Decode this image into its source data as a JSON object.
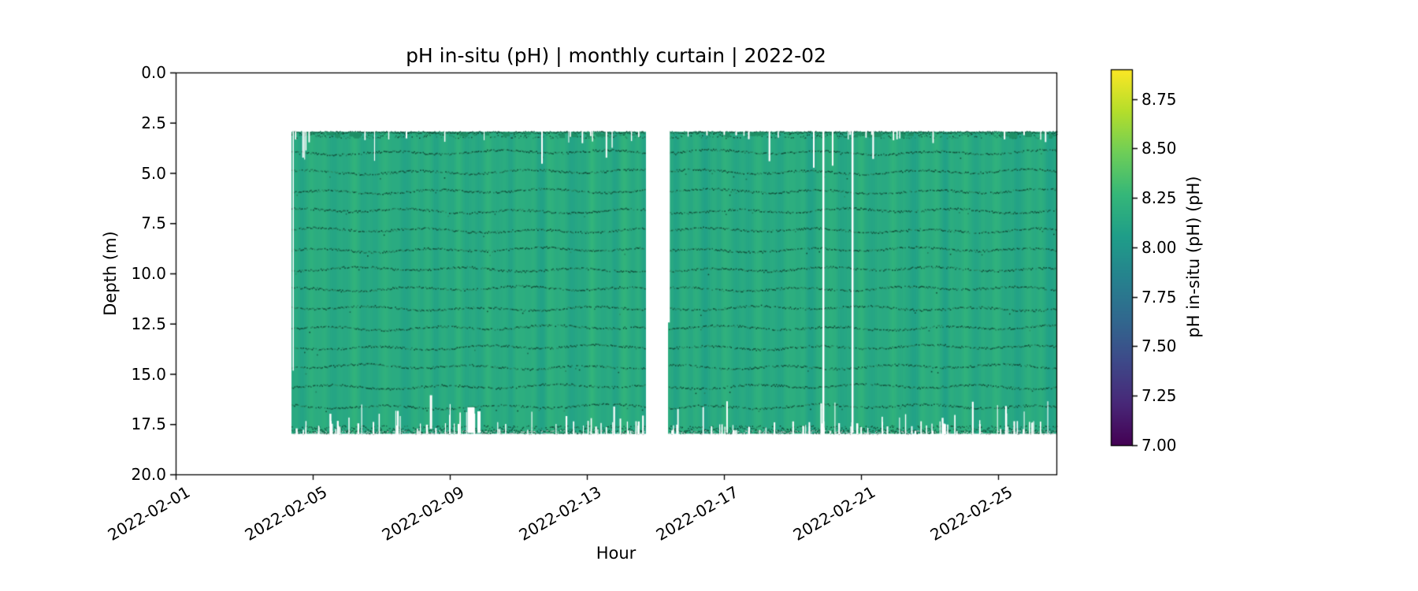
{
  "chart_data": {
    "type": "heatmap",
    "title": "pH in-situ (pH) | monthly curtain | 2022-02",
    "xlabel": "Hour",
    "ylabel": "Depth (m)",
    "x_tick_labels": [
      "2022-02-01",
      "2022-02-05",
      "2022-02-09",
      "2022-02-13",
      "2022-02-17",
      "2022-02-21",
      "2022-02-25"
    ],
    "x_tick_days": [
      0,
      4,
      8,
      12,
      16,
      20,
      24
    ],
    "x_range_days": [
      0,
      25.7
    ],
    "y_tick_labels": [
      "0.0",
      "2.5",
      "5.0",
      "7.5",
      "10.0",
      "12.5",
      "15.0",
      "17.5",
      "20.0"
    ],
    "y_tick_values": [
      0,
      2.5,
      5,
      7.5,
      10,
      12.5,
      15,
      17.5,
      20
    ],
    "y_range": [
      0,
      20
    ],
    "grid": false,
    "colorbar": {
      "label": "pH in-situ (pH) (pH)",
      "tick_labels_top_to_bottom": [
        "8.75",
        "8.50",
        "8.25",
        "8.00",
        "7.75",
        "7.50",
        "7.25",
        "7.00"
      ],
      "tick_values_top_to_bottom": [
        8.75,
        8.5,
        8.25,
        8.0,
        7.75,
        7.5,
        7.25,
        7.0
      ],
      "vmin": 7.0,
      "vmax": 8.9,
      "colormap": "viridis",
      "viridis_stops": [
        "#440154",
        "#482878",
        "#3e4989",
        "#31688e",
        "#26828e",
        "#1f9e89",
        "#35b779",
        "#6ece58",
        "#b5de2b",
        "#fde725"
      ]
    },
    "field": {
      "mean_ph": 8.16,
      "ph_band": [
        8.05,
        8.3
      ],
      "data_top_depth": 2.95,
      "data_bottom_depth": 17.9,
      "blocks_days": [
        [
          3.38,
          13.68
        ],
        [
          14.39,
          25.7
        ]
      ],
      "gap_days": [
        [
          13.68,
          14.39
        ]
      ],
      "sensor_line_depths": [
        3.95,
        4.92,
        5.89,
        6.86,
        7.83,
        8.8,
        9.77,
        10.74,
        11.71,
        12.68,
        13.65,
        14.62,
        15.6,
        16.6
      ],
      "top_band_depths": [
        2.95,
        3.25
      ],
      "bottom_band_depths": [
        17.55,
        17.92
      ],
      "specific_dropouts": [
        {
          "day": 3.43,
          "d0": 2.95,
          "d1": 14.8,
          "w": 1.5
        },
        {
          "day": 10.69,
          "d0": 2.95,
          "d1": 4.5,
          "w": 2
        },
        {
          "day": 12.57,
          "d0": 2.95,
          "d1": 4.2,
          "w": 2
        },
        {
          "day": 14.39,
          "d0": 2.95,
          "d1": 12.4,
          "w": 2.5
        },
        {
          "day": 16.09,
          "d0": 16.4,
          "d1": 17.9,
          "w": 2
        },
        {
          "day": 18.62,
          "d0": 2.95,
          "d1": 4.7,
          "w": 2
        },
        {
          "day": 18.9,
          "d0": 2.95,
          "d1": 17.9,
          "w": 2.5
        },
        {
          "day": 19.17,
          "d0": 2.95,
          "d1": 4.6,
          "w": 2
        },
        {
          "day": 19.75,
          "d0": 2.95,
          "d1": 17.9,
          "w": 2.5
        },
        {
          "day": 7.45,
          "d0": 16.1,
          "d1": 17.7,
          "w": 3
        },
        {
          "day": 8.62,
          "d0": 16.7,
          "d1": 17.9,
          "w": 9
        },
        {
          "day": 8.85,
          "d0": 16.9,
          "d1": 17.9,
          "w": 4
        }
      ],
      "colors": {
        "dot_dark": [
          "#14573f",
          "#1a6b52",
          "#0f4a38",
          "#23815f"
        ],
        "dot_light": "#2c8f68",
        "band_chunk": "#1f8f66",
        "gray_specks": [
          "#c2bec0",
          "#d8d2d4",
          "#a9a7a8"
        ],
        "spine": "#000000",
        "text": "#000000",
        "background": "#ffffff"
      }
    }
  }
}
